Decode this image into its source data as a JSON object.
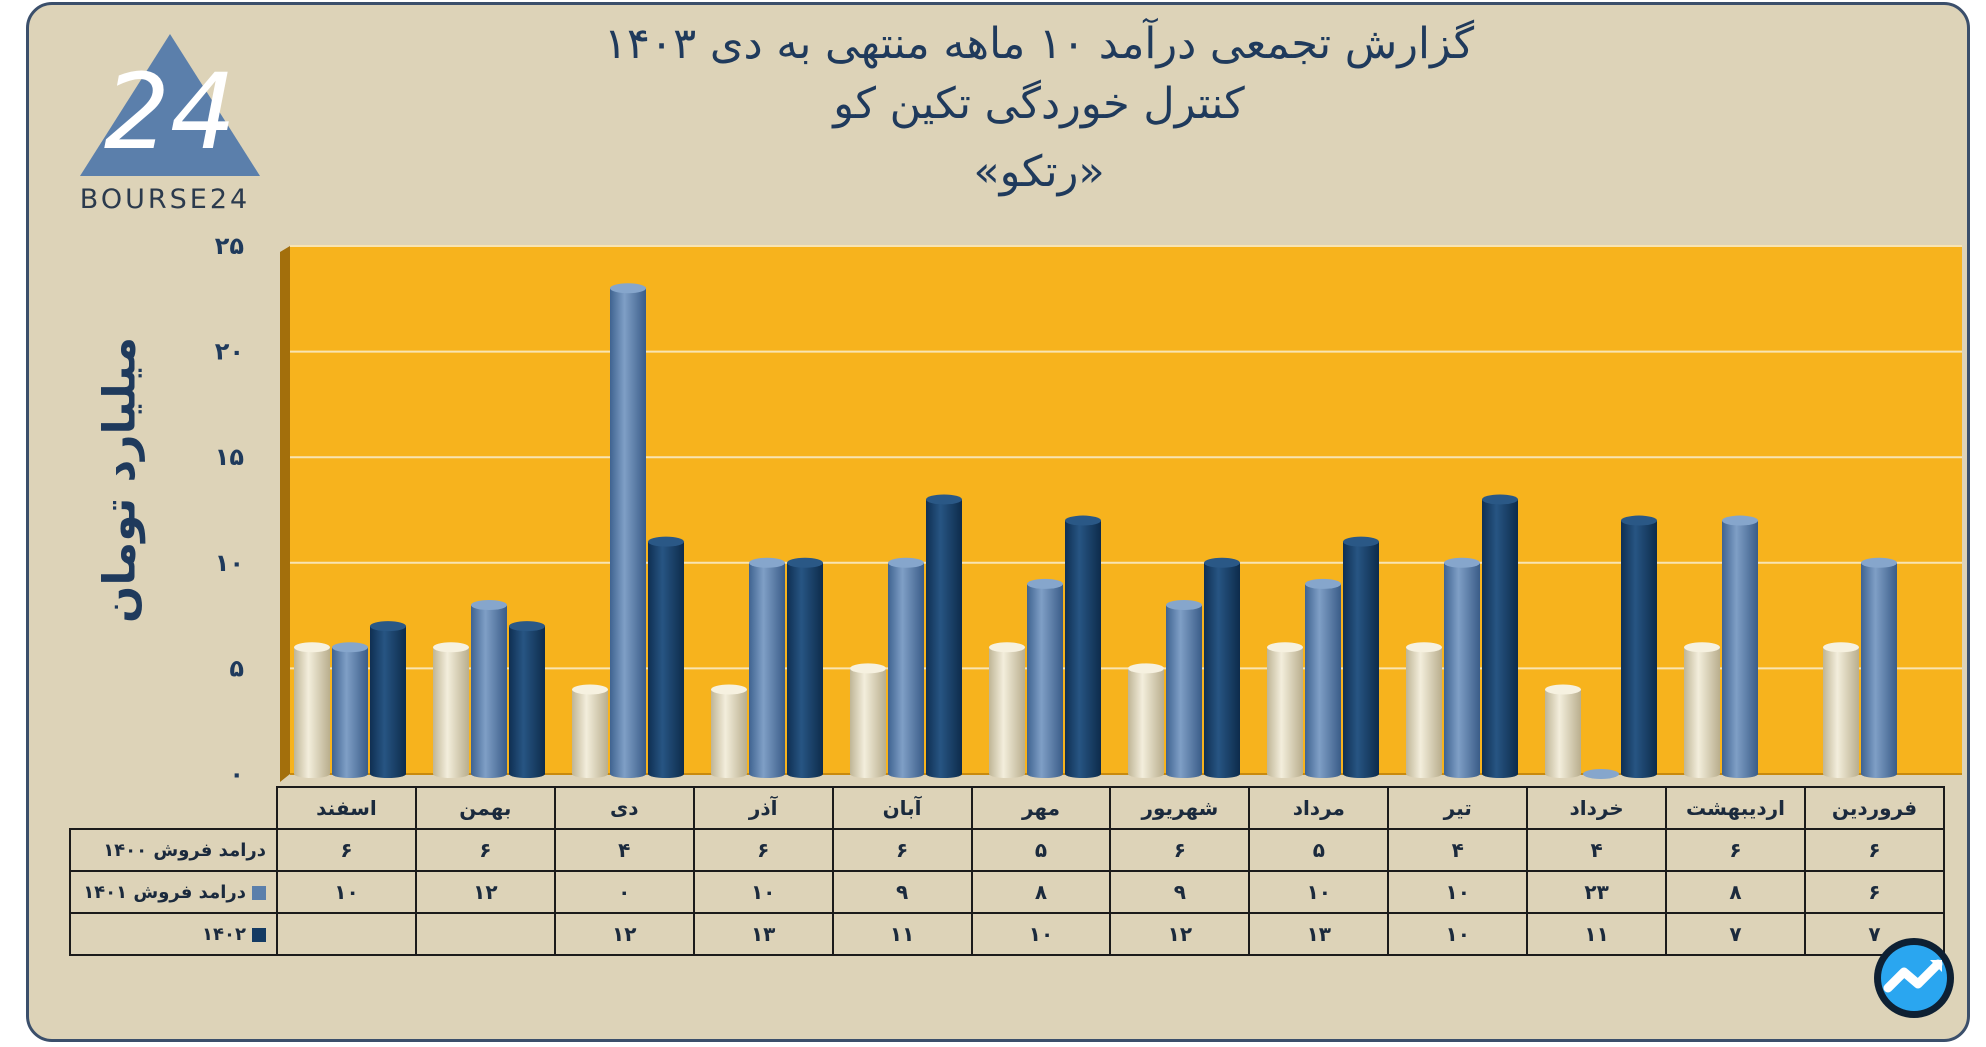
{
  "title": {
    "line1": "گزارش تجمعی درآمد ۱۰ ماهه منتهی به دی ۱۴۰۳",
    "line2": "کنترل خوردگی تکین کو",
    "line3": "«رتکو»"
  },
  "brand": {
    "name": "BOURSE24",
    "logo_text": "24"
  },
  "colors": {
    "background": "#ddd3b8",
    "plot": "#f7b31d",
    "s1400": "#e9e2c8",
    "s1401": "#5b7fab",
    "s1402": "#143a63"
  },
  "chart_data": {
    "type": "bar",
    "ylabel": "میلیارد تومان",
    "ylim": [
      0,
      25
    ],
    "yticks": [
      "۰",
      "۵",
      "۱۰",
      "۱۵",
      "۲۰",
      "۲۵"
    ],
    "categories": [
      "فروردین",
      "اردیبهشت",
      "خرداد",
      "تیر",
      "مرداد",
      "شهریور",
      "مهر",
      "آبان",
      "آذر",
      "دی",
      "بهمن",
      "اسفند"
    ],
    "series": [
      {
        "name": "درامد فروش ۱۴۰۰",
        "values": [
          6,
          6,
          4,
          4,
          5,
          6,
          5,
          6,
          6,
          4,
          6,
          6
        ],
        "labels": [
          "۶",
          "۶",
          "۴",
          "۴",
          "۵",
          "۶",
          "۵",
          "۶",
          "۶",
          "۴",
          "۶",
          "۶"
        ]
      },
      {
        "name": "درامد فروش ۱۴۰۱",
        "values": [
          6,
          8,
          23,
          10,
          10,
          9,
          8,
          9,
          10,
          0,
          12,
          10
        ],
        "labels": [
          "۶",
          "۸",
          "۲۳",
          "۱۰",
          "۱۰",
          "۹",
          "۸",
          "۹",
          "۱۰",
          "۰",
          "۱۲",
          "۱۰"
        ]
      },
      {
        "name": "۱۴۰۲",
        "values": [
          7,
          7,
          11,
          10,
          13,
          12,
          10,
          11,
          13,
          12,
          null,
          null
        ],
        "labels": [
          "۷",
          "۷",
          "۱۱",
          "۱۰",
          "۱۳",
          "۱۲",
          "۱۰",
          "۱۱",
          "۱۳",
          "۱۲",
          "",
          ""
        ]
      }
    ]
  }
}
